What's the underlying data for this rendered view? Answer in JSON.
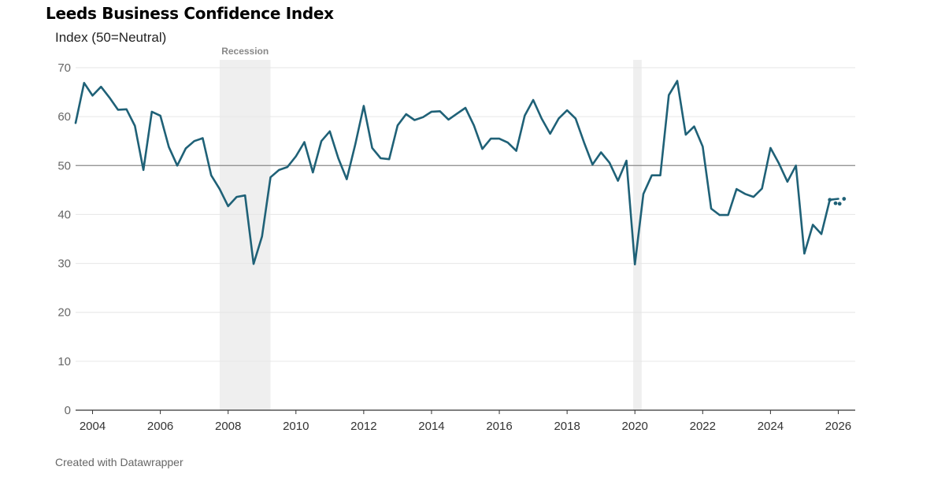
{
  "chart_data": {
    "type": "line",
    "title": "Leeds Business Confidence Index",
    "ylabel": "Index (50=Neutral)",
    "xlabel": "",
    "ylim": [
      0,
      70
    ],
    "xlim": [
      2003.5,
      2026.5
    ],
    "yticks": [
      0,
      10,
      20,
      30,
      40,
      50,
      60,
      70
    ],
    "xticks": [
      2004,
      2006,
      2008,
      2010,
      2012,
      2014,
      2016,
      2018,
      2020,
      2022,
      2024,
      2026
    ],
    "reference_line": 50,
    "shaded_periods": [
      {
        "label": "Recession",
        "start": 2007.75,
        "end": 2009.25
      },
      {
        "label": "",
        "start": 2019.95,
        "end": 2020.2
      }
    ],
    "series": [
      {
        "name": "Leeds Business Confidence Index",
        "color": "#1f6177",
        "x": [
          2003.5,
          2003.75,
          2004.0,
          2004.25,
          2004.5,
          2004.75,
          2005.0,
          2005.25,
          2005.5,
          2005.75,
          2006.0,
          2006.25,
          2006.5,
          2006.75,
          2007.0,
          2007.25,
          2007.5,
          2007.75,
          2008.0,
          2008.25,
          2008.5,
          2008.75,
          2009.0,
          2009.25,
          2009.5,
          2009.75,
          2010.0,
          2010.25,
          2010.5,
          2010.75,
          2011.0,
          2011.25,
          2011.5,
          2011.75,
          2012.0,
          2012.25,
          2012.5,
          2012.75,
          2013.0,
          2013.25,
          2013.5,
          2013.75,
          2014.0,
          2014.25,
          2014.5,
          2014.75,
          2015.0,
          2015.25,
          2015.5,
          2015.75,
          2016.0,
          2016.25,
          2016.5,
          2016.75,
          2017.0,
          2017.25,
          2017.5,
          2017.75,
          2018.0,
          2018.25,
          2018.5,
          2018.75,
          2019.0,
          2019.25,
          2019.5,
          2019.75,
          2020.0,
          2020.25,
          2020.5,
          2020.75,
          2021.0,
          2021.25,
          2021.5,
          2021.75,
          2022.0,
          2022.25,
          2022.5,
          2022.75,
          2023.0,
          2023.25,
          2023.5,
          2023.75,
          2024.0,
          2024.25,
          2024.5,
          2024.75,
          2025.0,
          2025.25,
          2025.5,
          2025.75,
          2026.0
        ],
        "values": [
          58.7,
          66.9,
          64.3,
          66.1,
          63.9,
          61.4,
          61.5,
          58.1,
          49.1,
          61.0,
          60.2,
          53.8,
          50.0,
          53.5,
          55.0,
          55.6,
          48.0,
          45.2,
          41.7,
          43.6,
          43.9,
          29.9,
          35.5,
          47.6,
          49.1,
          49.7,
          51.9,
          54.8,
          48.6,
          55.0,
          57.0,
          51.5,
          47.2,
          54.3,
          62.2,
          53.6,
          51.5,
          51.3,
          58.2,
          60.5,
          59.3,
          59.9,
          61.0,
          61.1,
          59.4,
          60.6,
          61.8,
          58.2,
          53.4,
          55.5,
          55.5,
          54.7,
          53.0,
          60.2,
          63.4,
          59.6,
          56.5,
          59.6,
          61.3,
          59.6,
          54.7,
          50.2,
          52.7,
          50.6,
          46.9,
          51.0,
          29.8,
          44.2,
          48.0,
          48.0,
          64.4,
          67.3,
          56.3,
          58.0,
          53.9,
          41.2,
          39.9,
          39.9,
          45.2,
          44.2,
          43.6,
          45.3,
          53.6,
          50.4,
          46.7,
          50.0,
          32.0,
          37.9,
          36.0,
          43.0,
          43.2
        ]
      }
    ],
    "projected_points": [
      {
        "x": 2025.75,
        "y": 43.0
      },
      {
        "x": 2025.92,
        "y": 42.3
      },
      {
        "x": 2026.04,
        "y": 42.2
      },
      {
        "x": 2026.17,
        "y": 43.2
      }
    ]
  },
  "labels": {
    "title": "Leeds Business Confidence Index",
    "ylabel": "Index (50=Neutral)",
    "recession": "Recession",
    "credit": "Created with Datawrapper"
  }
}
